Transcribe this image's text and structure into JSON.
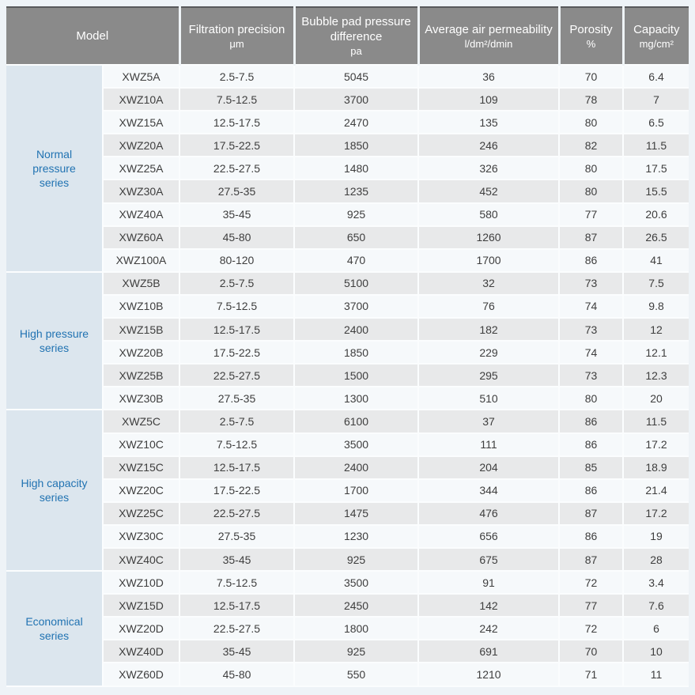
{
  "header": {
    "model": {
      "title": "Model"
    },
    "columns": [
      {
        "title": "Filtration precision",
        "unit": "μm"
      },
      {
        "title": "Bubble pad pressure difference",
        "unit": "pa"
      },
      {
        "title": "Average air permeability",
        "unit": "l/dm²/dmin"
      },
      {
        "title": "Porosity",
        "unit": "%"
      },
      {
        "title": "Capacity",
        "unit": "mg/cm²"
      }
    ]
  },
  "groups": [
    {
      "label": "Normal pressure series",
      "rows": [
        {
          "model": "XWZ5A",
          "precision": "2.5-7.5",
          "pressure": "5045",
          "permeability": "36",
          "porosity": "70",
          "capacity": "6.4"
        },
        {
          "model": "XWZ10A",
          "precision": "7.5-12.5",
          "pressure": "3700",
          "permeability": "109",
          "porosity": "78",
          "capacity": "7"
        },
        {
          "model": "XWZ15A",
          "precision": "12.5-17.5",
          "pressure": "2470",
          "permeability": "135",
          "porosity": "80",
          "capacity": "6.5"
        },
        {
          "model": "XWZ20A",
          "precision": "17.5-22.5",
          "pressure": "1850",
          "permeability": "246",
          "porosity": "82",
          "capacity": "11.5"
        },
        {
          "model": "XWZ25A",
          "precision": "22.5-27.5",
          "pressure": "1480",
          "permeability": "326",
          "porosity": "80",
          "capacity": "17.5"
        },
        {
          "model": "XWZ30A",
          "precision": "27.5-35",
          "pressure": "1235",
          "permeability": "452",
          "porosity": "80",
          "capacity": "15.5"
        },
        {
          "model": "XWZ40A",
          "precision": "35-45",
          "pressure": "925",
          "permeability": "580",
          "porosity": "77",
          "capacity": "20.6"
        },
        {
          "model": "XWZ60A",
          "precision": "45-80",
          "pressure": "650",
          "permeability": "1260",
          "porosity": "87",
          "capacity": "26.5"
        },
        {
          "model": "XWZ100A",
          "precision": "80-120",
          "pressure": "470",
          "permeability": "1700",
          "porosity": "86",
          "capacity": "41"
        }
      ]
    },
    {
      "label": "High pressure series",
      "rows": [
        {
          "model": "XWZ5B",
          "precision": "2.5-7.5",
          "pressure": "5100",
          "permeability": "32",
          "porosity": "73",
          "capacity": "7.5"
        },
        {
          "model": "XWZ10B",
          "precision": "7.5-12.5",
          "pressure": "3700",
          "permeability": "76",
          "porosity": "74",
          "capacity": "9.8"
        },
        {
          "model": "XWZ15B",
          "precision": "12.5-17.5",
          "pressure": "2400",
          "permeability": "182",
          "porosity": "73",
          "capacity": "12"
        },
        {
          "model": "XWZ20B",
          "precision": "17.5-22.5",
          "pressure": "1850",
          "permeability": "229",
          "porosity": "74",
          "capacity": "12.1"
        },
        {
          "model": "XWZ25B",
          "precision": "22.5-27.5",
          "pressure": "1500",
          "permeability": "295",
          "porosity": "73",
          "capacity": "12.3"
        },
        {
          "model": "XWZ30B",
          "precision": "27.5-35",
          "pressure": "1300",
          "permeability": "510",
          "porosity": "80",
          "capacity": "20"
        }
      ]
    },
    {
      "label": "High capacity series",
      "rows": [
        {
          "model": "XWZ5C",
          "precision": "2.5-7.5",
          "pressure": "6100",
          "permeability": "37",
          "porosity": "86",
          "capacity": "11.5"
        },
        {
          "model": "XWZ10C",
          "precision": "7.5-12.5",
          "pressure": "3500",
          "permeability": "111",
          "porosity": "86",
          "capacity": "17.2"
        },
        {
          "model": "XWZ15C",
          "precision": "12.5-17.5",
          "pressure": "2400",
          "permeability": "204",
          "porosity": "85",
          "capacity": "18.9"
        },
        {
          "model": "XWZ20C",
          "precision": "17.5-22.5",
          "pressure": "1700",
          "permeability": "344",
          "porosity": "86",
          "capacity": "21.4"
        },
        {
          "model": "XWZ25C",
          "precision": "22.5-27.5",
          "pressure": "1475",
          "permeability": "476",
          "porosity": "87",
          "capacity": "17.2"
        },
        {
          "model": "XWZ30C",
          "precision": "27.5-35",
          "pressure": "1230",
          "permeability": "656",
          "porosity": "86",
          "capacity": "19"
        },
        {
          "model": "XWZ40C",
          "precision": "35-45",
          "pressure": "925",
          "permeability": "675",
          "porosity": "87",
          "capacity": "28"
        }
      ]
    },
    {
      "label": "Economical series",
      "rows": [
        {
          "model": "XWZ10D",
          "precision": "7.5-12.5",
          "pressure": "3500",
          "permeability": "91",
          "porosity": "72",
          "capacity": "3.4"
        },
        {
          "model": "XWZ15D",
          "precision": "12.5-17.5",
          "pressure": "2450",
          "permeability": "142",
          "porosity": "77",
          "capacity": "7.6"
        },
        {
          "model": "XWZ20D",
          "precision": "22.5-27.5",
          "pressure": "1800",
          "permeability": "242",
          "porosity": "72",
          "capacity": "6"
        },
        {
          "model": "XWZ40D",
          "precision": "35-45",
          "pressure": "925",
          "permeability": "691",
          "porosity": "70",
          "capacity": "10"
        },
        {
          "model": "XWZ60D",
          "precision": "45-80",
          "pressure": "550",
          "permeability": "1210",
          "porosity": "71",
          "capacity": "11"
        }
      ]
    }
  ],
  "colors": {
    "header_bg": "#8a8a8a",
    "header_text": "#ffffff",
    "group_cell_bg": "#dce6ee",
    "group_text": "#2173b2",
    "row_light_bg": "#f6f9fb",
    "row_dark_bg": "#e8e9ea",
    "body_text": "#3e3e3e",
    "page_bg": "#eef3f7",
    "frame_border": "#58595b",
    "cell_border": "#fbfdfe"
  }
}
